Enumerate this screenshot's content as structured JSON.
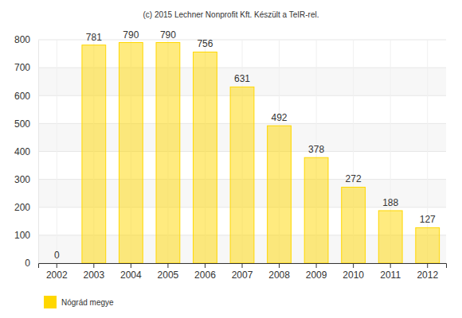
{
  "chart_data": {
    "type": "bar",
    "title": "(c) 2015 Lechner Nonprofit Kft. Készült a TeIR-rel.",
    "categories": [
      "2002",
      "2003",
      "2004",
      "2005",
      "2006",
      "2007",
      "2008",
      "2009",
      "2010",
      "2011",
      "2012"
    ],
    "series": [
      {
        "name": "Nógrád megye",
        "color": "#ffd700",
        "values": [
          0,
          781,
          790,
          790,
          756,
          631,
          492,
          378,
          272,
          188,
          127
        ]
      }
    ],
    "ylim": [
      0,
      800
    ],
    "yticks": [
      0,
      100,
      200,
      300,
      400,
      500,
      600,
      700,
      800
    ],
    "grid": true,
    "data_labels": true,
    "legend": "bottom-left"
  }
}
